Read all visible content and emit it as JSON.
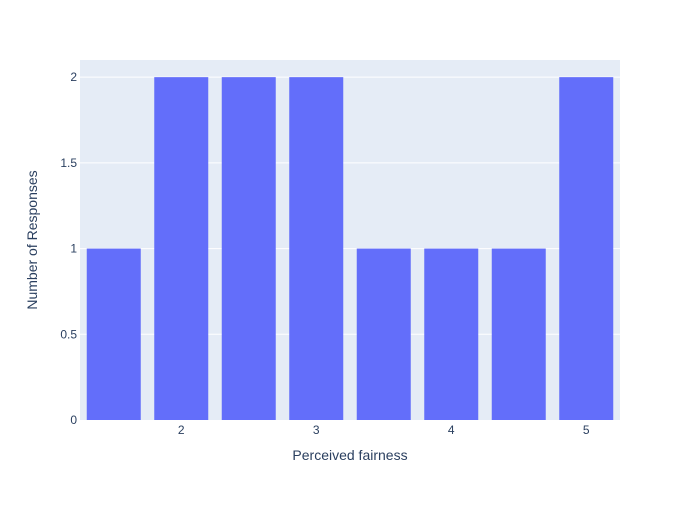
{
  "chart_data": {
    "type": "bar",
    "title": "",
    "xlabel": "Perceived fairness",
    "ylabel": "Number of Responses",
    "x": [
      1.5,
      2,
      2.5,
      3,
      3.5,
      4,
      4.5,
      5
    ],
    "values": [
      1,
      2,
      2,
      2,
      1,
      1,
      1,
      2
    ],
    "xlim": [
      1.25,
      5.25
    ],
    "ylim": [
      0,
      2.1
    ],
    "x_ticks": [
      2,
      3,
      4,
      5
    ],
    "x_tick_labels": [
      "2",
      "3",
      "4",
      "5"
    ],
    "y_ticks": [
      0,
      0.5,
      1,
      1.5,
      2
    ],
    "y_tick_labels": [
      "0",
      "0.5",
      "1",
      "1.5",
      "2"
    ],
    "grid": true,
    "legend": "none"
  },
  "colors": {
    "bar": "#636efa",
    "plot_bg": "#e5ecf6",
    "grid": "#ffffff",
    "text": "#2a3f5f"
  }
}
